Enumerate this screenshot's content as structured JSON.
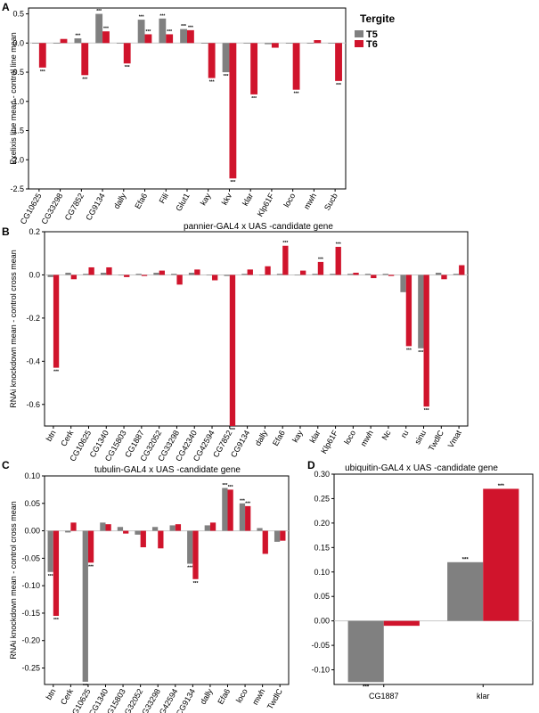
{
  "colors": {
    "T5": "#808080",
    "T6": "#d0142c",
    "axis": "#000000"
  },
  "legend": {
    "title": "Tergite",
    "entries": [
      "T5",
      "T6"
    ]
  },
  "chart_data": [
    {
      "panel": "A",
      "type": "bar",
      "title": "",
      "xlabel": "",
      "ylabel": "Exelixis line mean - control line mean",
      "ylim": [
        -2.5,
        0.6
      ],
      "yticks": [
        0.5,
        0.0,
        -0.5,
        -1.0,
        -1.5,
        -2.0,
        -2.5
      ],
      "ytick_labels": [
        "0.5",
        "0.0",
        "-0.5",
        "-1.0",
        "-1.5",
        "-2.0",
        "-2.5"
      ],
      "categories": [
        "CG10625",
        "CG33298",
        "CG7852",
        "CG9134",
        "dally",
        "Efa6",
        "Fili",
        "Glut1",
        "kay",
        "kkv",
        "klar",
        "Klp61F",
        "loco",
        "mwh",
        "Sucb"
      ],
      "series": [
        {
          "name": "T5",
          "values": [
            0.0,
            -0.01,
            0.08,
            0.5,
            0.0,
            0.4,
            0.42,
            0.24,
            -0.01,
            -0.5,
            0.0,
            -0.02,
            -0.01,
            -0.01,
            0.0
          ],
          "sig": [
            "",
            "",
            "***",
            "***",
            "",
            "***",
            "***",
            "***",
            "",
            "***",
            "",
            "",
            "",
            "",
            ""
          ]
        },
        {
          "name": "T6",
          "values": [
            -0.42,
            0.07,
            -0.55,
            0.2,
            -0.35,
            0.15,
            0.15,
            0.22,
            -0.6,
            -2.32,
            -0.88,
            -0.08,
            -0.8,
            0.05,
            -0.65
          ],
          "sig": [
            "***",
            "",
            "***",
            "***",
            "***",
            "***",
            "***",
            "***",
            "***",
            "***",
            "***",
            "",
            "***",
            "",
            "***"
          ]
        }
      ]
    },
    {
      "panel": "B",
      "type": "bar",
      "title": "pannier-GAL4 x UAS -candidate gene",
      "xlabel": "",
      "ylabel": "RNAi knockdown mean - control cross mean",
      "ylim": [
        -0.7,
        0.2
      ],
      "yticks": [
        0.2,
        0.0,
        -0.2,
        -0.4,
        -0.6
      ],
      "ytick_labels": [
        "0.2",
        "0.0",
        "-0.2",
        "-0.4",
        "-0.6"
      ],
      "categories": [
        "btn",
        "Cerk",
        "CG10625",
        "CG1340",
        "CG15803",
        "CG1887",
        "CG32052",
        "CG33298",
        "CG42340",
        "CG42594",
        "CG7852",
        "CG9134",
        "dally",
        "Efa6",
        "kay",
        "klar",
        "Klp61F",
        "loco",
        "mwh",
        "Nc",
        "ru",
        "sinu",
        "TwdlC",
        "Vmat"
      ],
      "series": [
        {
          "name": "T5",
          "values": [
            -0.01,
            0.01,
            0.005,
            0.01,
            0.0,
            0.005,
            0.01,
            0.005,
            0.01,
            0.0,
            -0.005,
            0.005,
            0.0,
            0.005,
            0.0,
            0.005,
            0.005,
            0.005,
            0.005,
            0.005,
            -0.08,
            -0.34,
            0.01,
            0.005
          ],
          "sig": [
            "",
            "",
            "",
            "",
            "",
            "",
            "",
            "",
            "",
            "",
            "",
            "",
            "",
            "",
            "",
            "",
            "",
            "",
            "",
            "",
            "",
            "***",
            "",
            ""
          ]
        },
        {
          "name": "T6",
          "values": [
            -0.43,
            -0.02,
            0.035,
            0.035,
            -0.01,
            -0.005,
            0.02,
            -0.045,
            0.025,
            -0.025,
            -0.7,
            0.025,
            0.04,
            0.135,
            0.02,
            0.06,
            0.13,
            0.01,
            -0.015,
            -0.005,
            -0.33,
            -0.61,
            -0.02,
            0.045
          ],
          "sig": [
            "***",
            "",
            "",
            "",
            "",
            "",
            "",
            "",
            "",
            "",
            "***",
            "",
            "",
            "***",
            "",
            "***",
            "***",
            "",
            "",
            "",
            "***",
            "***",
            "",
            ""
          ]
        }
      ]
    },
    {
      "panel": "C",
      "type": "bar",
      "title": "tubulin-GAL4 x UAS -candidate gene",
      "xlabel": "",
      "ylabel": "RNAi knockdown mean - control cross mean",
      "ylim": [
        -0.28,
        0.1
      ],
      "yticks": [
        0.1,
        0.05,
        0.0,
        -0.05,
        -0.1,
        -0.15,
        -0.2,
        -0.25
      ],
      "ytick_labels": [
        "0.10",
        "0.05",
        "0.00",
        "-0.05",
        "-0.10",
        "-0.15",
        "-0.20",
        "-0.25"
      ],
      "categories": [
        "btn",
        "Cerk",
        "CG10625",
        "CG1340",
        "CG15803",
        "CG32052",
        "CG33298",
        "CG42594",
        "CG9134",
        "dally",
        "Efa6",
        "loco",
        "mwh",
        "TwdlC"
      ],
      "series": [
        {
          "name": "T5",
          "values": [
            -0.075,
            -0.003,
            -0.275,
            0.015,
            0.007,
            -0.007,
            0.007,
            0.01,
            -0.06,
            0.01,
            0.078,
            0.05,
            0.005,
            -0.02
          ],
          "sig": [
            "***",
            "",
            "***",
            "",
            "",
            "",
            "",
            "",
            "***",
            "",
            "***",
            "***",
            "",
            ""
          ]
        },
        {
          "name": "T6",
          "values": [
            -0.155,
            0.015,
            -0.058,
            0.012,
            -0.005,
            -0.03,
            -0.032,
            0.012,
            -0.088,
            0.015,
            0.075,
            0.045,
            -0.042,
            -0.018
          ],
          "sig": [
            "***",
            "",
            "***",
            "",
            "",
            "",
            "",
            "",
            "***",
            "",
            "***",
            "***",
            "",
            ""
          ]
        }
      ]
    },
    {
      "panel": "D",
      "type": "bar",
      "title": "ubiquitin-GAL4 x UAS -candidate gene",
      "xlabel": "",
      "ylabel": "",
      "ylim": [
        -0.13,
        0.3
      ],
      "yticks": [
        0.3,
        0.25,
        0.2,
        0.15,
        0.1,
        0.05,
        0.0,
        -0.05,
        -0.1
      ],
      "ytick_labels": [
        "0.30",
        "0.25",
        "0.20",
        "0.15",
        "0.10",
        "0.05",
        "0.00",
        "-0.05",
        "-0.10"
      ],
      "categories": [
        "CG1887",
        "klar"
      ],
      "series": [
        {
          "name": "T5",
          "values": [
            -0.125,
            0.12
          ],
          "sig": [
            "***",
            "***"
          ]
        },
        {
          "name": "T6",
          "values": [
            -0.01,
            0.27
          ],
          "sig": [
            "",
            "***"
          ]
        }
      ]
    }
  ]
}
